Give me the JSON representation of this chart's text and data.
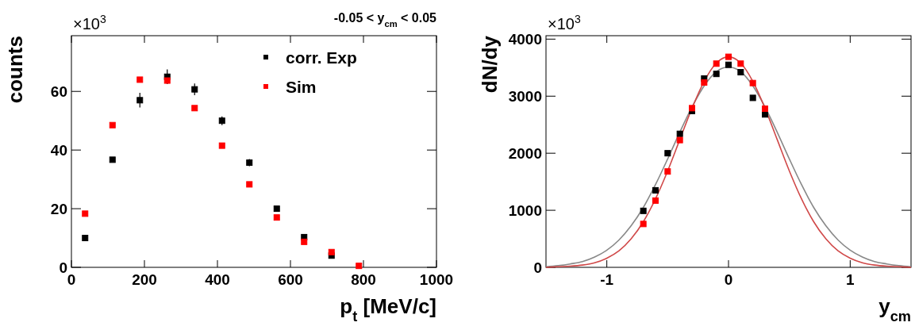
{
  "chart_data": [
    {
      "type": "scatter",
      "title": "-0.05 < y$_{cm}$ < 0.05",
      "xlabel": "p$_{t}$ [MeV/c]",
      "ylabel": "counts",
      "annotations": [
        "×10$^{3}$"
      ],
      "xlim": [
        0,
        1000
      ],
      "xticks": [
        0,
        200,
        400,
        600,
        800,
        1000
      ],
      "ylim": [
        0,
        79
      ],
      "yticks": [
        0,
        20,
        40,
        60
      ],
      "legend": "top right",
      "marker": "square",
      "series": [
        {
          "name": "corr. Exp",
          "color": "#000000",
          "x": [
            37.5,
            112.5,
            187.5,
            262.5,
            337.5,
            412.5,
            487.5,
            562.5,
            637.5,
            712.5
          ],
          "values": [
            10,
            36.7,
            57,
            65,
            60.7,
            50,
            35.7,
            20,
            10.3,
            4
          ],
          "errors": [
            null,
            null,
            2.5,
            2.5,
            2,
            1.5,
            1.2,
            null,
            null,
            null
          ]
        },
        {
          "name": "Sim",
          "color": "#ff0000",
          "x": [
            37.5,
            112.5,
            187.5,
            262.5,
            337.5,
            412.5,
            487.5,
            562.5,
            637.5,
            712.5,
            787.5
          ],
          "values": [
            18.3,
            48.5,
            64,
            63.7,
            54.3,
            41.5,
            28.3,
            17,
            8.7,
            5.2,
            0.5
          ]
        }
      ]
    },
    {
      "type": "scatter",
      "xlabel": "y$_{cm}$",
      "ylabel": "dN/dy",
      "annotations": [
        "×10$^{3}$"
      ],
      "xlim": [
        -1.5,
        1.5
      ],
      "xticks": [
        -1,
        0,
        1
      ],
      "ylim": [
        0,
        4060
      ],
      "yticks": [
        0,
        1000,
        2000,
        3000,
        4000
      ],
      "series": [
        {
          "type": "line",
          "color": "#888888",
          "x": [
            -1.5,
            -1.4,
            -1.3,
            -1.2,
            -1.1,
            -1,
            -0.9,
            -0.8,
            -0.7,
            -0.6,
            -0.5,
            -0.4,
            -0.3,
            -0.2,
            -0.1,
            0,
            0.1,
            0.2,
            0.3,
            0.4,
            0.5,
            0.6,
            0.7,
            0.8,
            0.9,
            1,
            1.1,
            1.2,
            1.3,
            1.4,
            1.5
          ],
          "values": [
            10,
            30,
            60,
            100,
            180,
            300,
            480,
            730,
            1050,
            1450,
            1900,
            2370,
            2810,
            3180,
            3430,
            3510,
            3430,
            3180,
            2810,
            2370,
            1900,
            1450,
            1050,
            730,
            480,
            300,
            180,
            100,
            60,
            30,
            10
          ]
        },
        {
          "type": "line",
          "color": "#d04848",
          "x": [
            -1.5,
            -1.4,
            -1.3,
            -1.2,
            -1.1,
            -1,
            -0.9,
            -0.8,
            -0.7,
            -0.6,
            -0.5,
            -0.4,
            -0.3,
            -0.2,
            -0.1,
            0,
            0.1,
            0.2,
            0.3,
            0.4,
            0.5,
            0.6,
            0.7,
            0.8,
            0.9,
            1,
            1.1,
            1.2,
            1.3,
            1.4,
            1.5
          ],
          "values": [
            0,
            10,
            20,
            40,
            80,
            160,
            290,
            500,
            800,
            1200,
            1690,
            2240,
            2790,
            3260,
            3580,
            3690,
            3580,
            3260,
            2790,
            2240,
            1690,
            1200,
            800,
            500,
            290,
            160,
            80,
            40,
            20,
            10,
            0
          ]
        },
        {
          "color": "#000000",
          "marker": "square",
          "x": [
            -0.7,
            -0.6,
            -0.5,
            -0.4,
            -0.3,
            -0.2,
            -0.1,
            0,
            0.1,
            0.2,
            0.3
          ],
          "values": [
            990,
            1350,
            2000,
            2340,
            2740,
            3310,
            3390,
            3550,
            3420,
            2970,
            2680
          ]
        },
        {
          "color": "#ff0000",
          "marker": "square",
          "x": [
            -0.7,
            -0.6,
            -0.5,
            -0.4,
            -0.3,
            -0.2,
            -0.1,
            0,
            0.1,
            0.2,
            0.3
          ],
          "values": [
            760,
            1170,
            1680,
            2230,
            2790,
            3240,
            3570,
            3690,
            3570,
            3230,
            2780
          ]
        }
      ]
    }
  ]
}
